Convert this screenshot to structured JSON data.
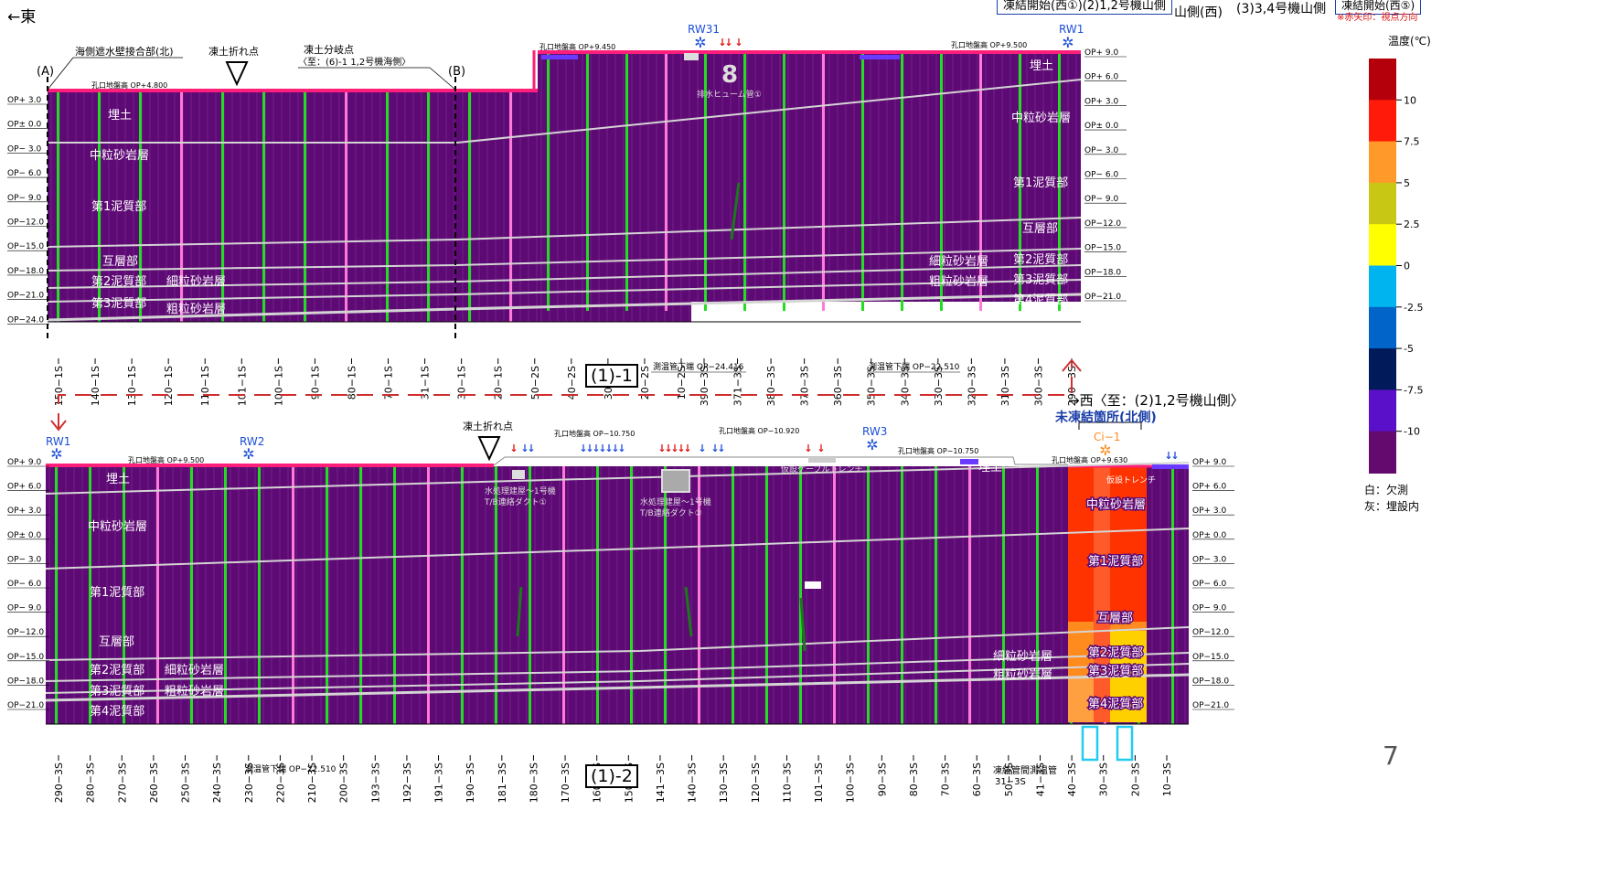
{
  "header": {
    "east_label": "←東",
    "boxes": [
      {
        "text": "凍結開始(西①)(2)1,2号機山側"
      },
      {
        "text": "山側(西)"
      },
      {
        "text": "(3)3,4号機山側"
      },
      {
        "text": "凍結開始(西⑤)"
      }
    ],
    "note": "※赤矢印：視点方向"
  },
  "colors": {
    "column": "#5e0a74",
    "stripe": "#72208a",
    "green": "#22dd22",
    "pink": "#ff7ad8",
    "surface": "#ff1f7a",
    "warm1": "#ff8a1e",
    "warm2": "#ff3300",
    "warm3": "#ffd000",
    "warm4": "#ff5a1a",
    "blue": "#1c4fd8",
    "red": "#e01010",
    "layer": "#d4d4d4"
  },
  "legend": {
    "title": "温度(℃)",
    "colors": [
      "#b3000a",
      "#ff1a0a",
      "#ff9a2a",
      "#c8c814",
      "#ffff00",
      "#00b4f0",
      "#0064c8",
      "#001a5a",
      "#5a10c8",
      "#640a6e"
    ],
    "ticks": [
      "10",
      "7.5",
      "5",
      "2.5",
      "0",
      "-2.5",
      "-5",
      "-7.5",
      "-10"
    ],
    "notes": [
      "白：欠測",
      "灰：埋設内"
    ]
  },
  "page_number": "7",
  "panel1": {
    "id_label": "(1)-1",
    "rw_labels": [
      "RW31",
      "RW1"
    ],
    "top_labels": [
      "海側遮水壁接合部(北)",
      "凍土折れ点",
      "凍土分岐点",
      "〈至：(6)-1 1,2号機海側〉"
    ],
    "point_labels": [
      "(A)",
      "(B)"
    ],
    "ground_labels": [
      "孔口地盤高 OP+4.800",
      "孔口地盤高 OP+9.450",
      "孔口地盤高 OP+9.500"
    ],
    "depth_labels": [
      "OP+ 3.0",
      "OP± 0.0",
      "OP− 3.0",
      "OP− 6.0",
      "OP− 9.0",
      "OP−12.0",
      "OP−15.0",
      "OP−18.0",
      "OP−21.0",
      "OP−24.0"
    ],
    "right_depth_labels": [
      "OP+ 9.0",
      "OP+ 6.0",
      "OP+ 3.0",
      "OP± 0.0",
      "OP− 3.0",
      "OP− 6.0",
      "OP− 9.0",
      "OP−12.0",
      "OP−15.0",
      "OP−18.0",
      "OP−21.0"
    ],
    "left_layers": [
      "埋土",
      "中粒砂岩層",
      "第1泥質部",
      "互層部",
      "第2泥質部",
      "細粒砂岩層",
      "第3泥質部",
      "粗粒砂岩層"
    ],
    "right_layers": [
      "埋土",
      "中粒砂岩層",
      "第1泥質部",
      "互層部",
      "第2泥質部",
      "細粒砂岩層",
      "第3泥質部",
      "粗粒砂岩層",
      "第4泥質部"
    ],
    "pipe_label": "排水ヒューム管①",
    "bottom_notes": [
      "測温管下端 OP−24.416",
      "測温管下端 OP−22.510"
    ],
    "ticks": [
      "150−1S",
      "140−1S",
      "130−1S",
      "120−1S",
      "110−1S",
      "101−1S",
      "100−1S",
      "90−1S",
      "80−1S",
      "70−1S",
      "31−1S",
      "30−1S",
      "20−1S",
      "50−2S",
      "40−2S",
      "30−2S",
      "20−2S",
      "10−2S",
      "390−3S",
      "371−3S",
      "380−3S",
      "370−3S",
      "360−3S",
      "350−3S",
      "340−3S",
      "330−3S",
      "320−3S",
      "310−3S",
      "300−3S",
      "290−3S"
    ]
  },
  "panel2": {
    "id_label": "(1)-2",
    "west_label": "→西〈至：(2)1,2号機山側〉",
    "unfrozen_label": "未凍結箇所(北側)",
    "ci_label": "Ci−1",
    "rw_labels": [
      "RW1",
      "RW2",
      "RW3"
    ],
    "top_labels": [
      "凍土折れ点"
    ],
    "ground_labels": [
      "孔口地盤高 OP+9.500",
      "孔口地盤高 OP−10.750",
      "孔口地盤高 OP−10.920",
      "孔口地盤高 OP−10.750",
      "孔口地盤高 OP+9.630"
    ],
    "depth_labels": [
      "OP+ 9.0",
      "OP+ 6.0",
      "OP+ 3.0",
      "OP± 0.0",
      "OP− 3.0",
      "OP− 6.0",
      "OP− 9.0",
      "OP−12.0",
      "OP−15.0",
      "OP−18.0",
      "OP−21.0"
    ],
    "left_layers": [
      "埋土",
      "中粒砂岩層",
      "第1泥質部",
      "互層部",
      "第2泥質部",
      "細粒砂岩層",
      "第3泥質部",
      "粗粒砂岩層",
      "第4泥質部"
    ],
    "right_layers": [
      "埋土",
      "中粒砂岩層",
      "第1泥質部",
      "互層部",
      "細粒砂岩層",
      "第2泥質部",
      "粗粒砂岩層",
      "第3泥質部",
      "第4泥質部"
    ],
    "duct_labels": [
      "水処理建屋～1号機",
      "T/B連絡ダクト①",
      "水処理建屋～1号機",
      "T/B連絡ダクト②",
      "仮設ケーブルトレンチ",
      "仮設トレンチ"
    ],
    "bottom_notes": [
      "測温管下端 OP−22.510",
      "凍結管間測温管",
      "31−3S"
    ],
    "ticks": [
      "290−3S",
      "280−3S",
      "270−3S",
      "260−3S",
      "250−3S",
      "240−3S",
      "230−3S",
      "220−3S",
      "210−3S",
      "200−3S",
      "193−3S",
      "192−3S",
      "191−3S",
      "190−3S",
      "181−3S",
      "180−3S",
      "170−3S",
      "160−3S",
      "150−3S",
      "141−3S",
      "140−3S",
      "130−3S",
      "120−3S",
      "110−3S",
      "101−3S",
      "100−3S",
      "90−3S",
      "80−3S",
      "70−3S",
      "60−3S",
      "50−3S",
      "41−3S",
      "40−3S",
      "30−3S",
      "20−3S",
      "10−3S"
    ]
  }
}
